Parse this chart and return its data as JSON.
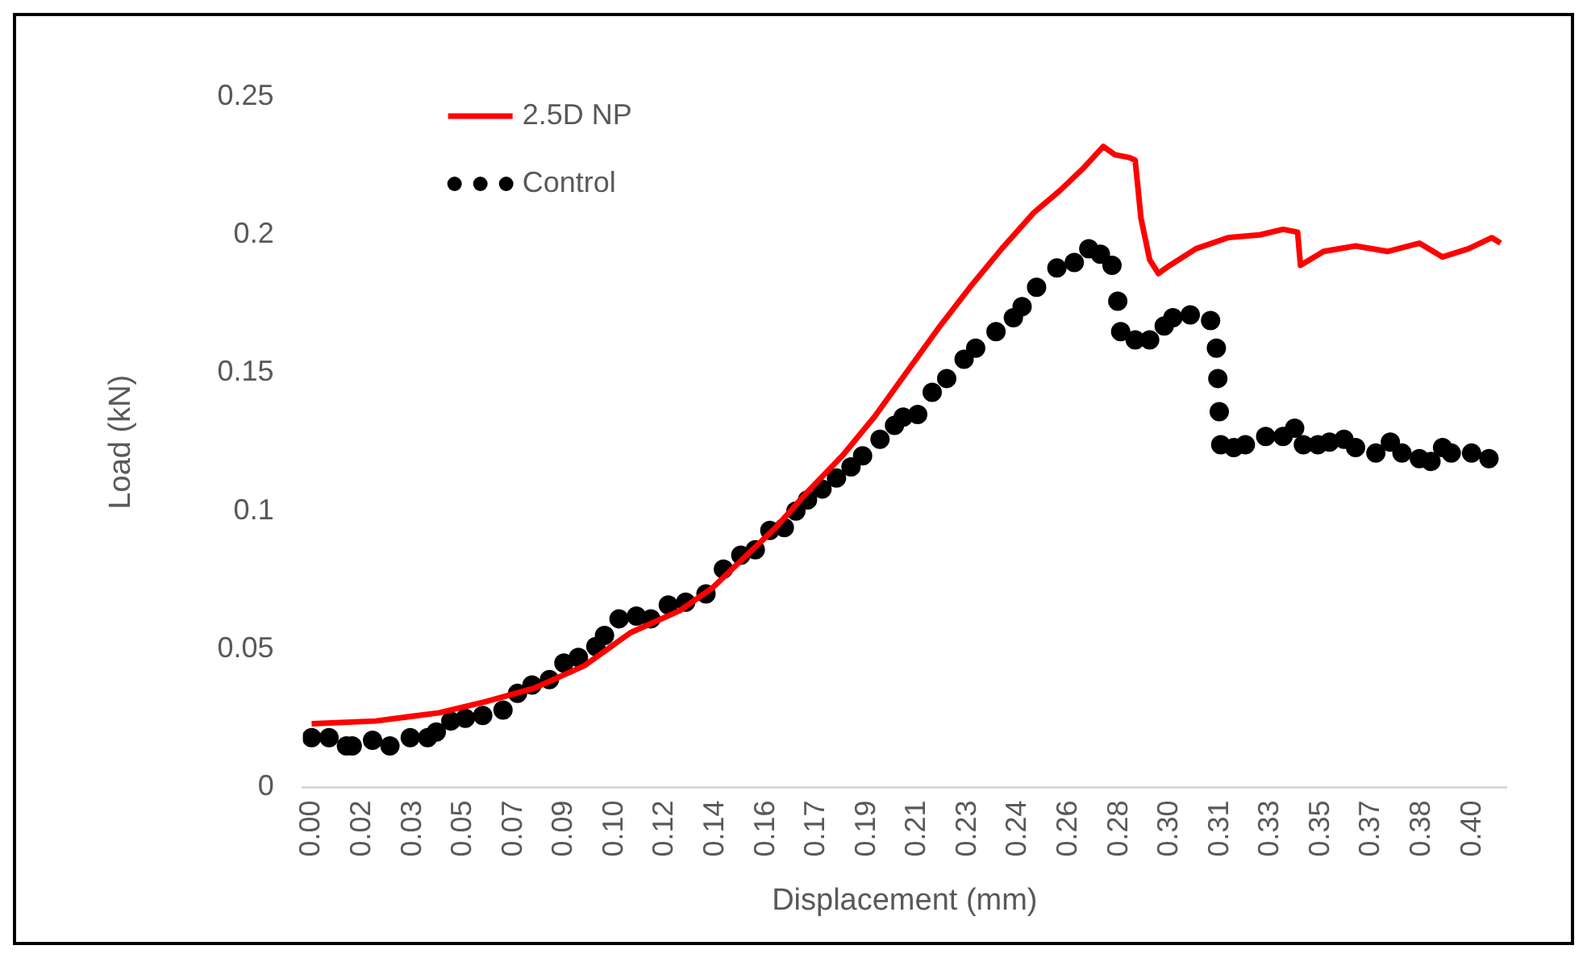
{
  "chart_data": {
    "type": "line",
    "xlabel": "Displacement (mm)",
    "ylabel": "Load (kN)",
    "xlim": [
      -0.003,
      0.412
    ],
    "ylim": [
      0,
      0.25
    ],
    "yticks": [
      0,
      0.05,
      0.1,
      0.15,
      0.2,
      0.25
    ],
    "xticks": [
      {
        "value": 0,
        "label": "0.00"
      },
      {
        "value": 0.0174,
        "label": "0.02"
      },
      {
        "value": 0.0348,
        "label": "0.03"
      },
      {
        "value": 0.0522,
        "label": "0.05"
      },
      {
        "value": 0.0696,
        "label": "0.07"
      },
      {
        "value": 0.087,
        "label": "0.09"
      },
      {
        "value": 0.1044,
        "label": "0.10"
      },
      {
        "value": 0.1218,
        "label": "0.12"
      },
      {
        "value": 0.1392,
        "label": "0.14"
      },
      {
        "value": 0.1566,
        "label": "0.16"
      },
      {
        "value": 0.174,
        "label": "0.17"
      },
      {
        "value": 0.1914,
        "label": "0.19"
      },
      {
        "value": 0.2088,
        "label": "0.21"
      },
      {
        "value": 0.2262,
        "label": "0.23"
      },
      {
        "value": 0.2436,
        "label": "0.24"
      },
      {
        "value": 0.261,
        "label": "0.26"
      },
      {
        "value": 0.2784,
        "label": "0.28"
      },
      {
        "value": 0.2958,
        "label": "0.30"
      },
      {
        "value": 0.3132,
        "label": "0.31"
      },
      {
        "value": 0.3306,
        "label": "0.33"
      },
      {
        "value": 0.348,
        "label": "0.35"
      },
      {
        "value": 0.3654,
        "label": "0.37"
      },
      {
        "value": 0.3828,
        "label": "0.38"
      },
      {
        "value": 0.4002,
        "label": "0.40"
      }
    ],
    "grid": false,
    "legend": "top left",
    "series": [
      {
        "name": "2.5D NP",
        "color": "#ff0000",
        "line_style": "solid",
        "marker": "none",
        "x": [
          0,
          0.022,
          0.044,
          0.06,
          0.077,
          0.094,
          0.11,
          0.127,
          0.138,
          0.149,
          0.16,
          0.171,
          0.183,
          0.194,
          0.205,
          0.216,
          0.227,
          0.238,
          0.249,
          0.258,
          0.266,
          0.273,
          0.277,
          0.282,
          0.284,
          0.286,
          0.289,
          0.292,
          0.296,
          0.305,
          0.316,
          0.327,
          0.335,
          0.34,
          0.341,
          0.349,
          0.36,
          0.371,
          0.382,
          0.39,
          0.399,
          0.407,
          0.41
        ],
        "values": [
          0.023,
          0.024,
          0.027,
          0.031,
          0.036,
          0.044,
          0.056,
          0.064,
          0.072,
          0.083,
          0.094,
          0.107,
          0.12,
          0.134,
          0.15,
          0.166,
          0.181,
          0.195,
          0.208,
          0.216,
          0.224,
          0.232,
          0.229,
          0.228,
          0.227,
          0.206,
          0.191,
          0.186,
          0.189,
          0.195,
          0.199,
          0.2,
          0.202,
          0.201,
          0.189,
          0.194,
          0.196,
          0.194,
          0.197,
          0.192,
          0.195,
          0.199,
          0.197
        ]
      },
      {
        "name": "Control",
        "type": "scatter",
        "color": "#000000",
        "marker": "circle",
        "x": [
          0,
          0.006,
          0.012,
          0.014,
          0.021,
          0.027,
          0.034,
          0.04,
          0.043,
          0.048,
          0.053,
          0.059,
          0.066,
          0.071,
          0.076,
          0.082,
          0.087,
          0.092,
          0.098,
          0.101,
          0.106,
          0.112,
          0.117,
          0.123,
          0.129,
          0.136,
          0.142,
          0.148,
          0.153,
          0.158,
          0.163,
          0.167,
          0.171,
          0.176,
          0.181,
          0.186,
          0.19,
          0.196,
          0.201,
          0.204,
          0.209,
          0.214,
          0.219,
          0.225,
          0.229,
          0.236,
          0.242,
          0.245,
          0.25,
          0.257,
          0.263,
          0.268,
          0.272,
          0.276,
          0.278,
          0.279,
          0.284,
          0.289,
          0.294,
          0.297,
          0.303,
          0.31,
          0.312,
          0.3125,
          0.313,
          0.3135,
          0.318,
          0.322,
          0.329,
          0.335,
          0.339,
          0.342,
          0.347,
          0.351,
          0.356,
          0.36,
          0.367,
          0.372,
          0.376,
          0.382,
          0.386,
          0.39,
          0.393,
          0.4,
          0.406
        ],
        "values": [
          0.018,
          0.018,
          0.015,
          0.015,
          0.017,
          0.015,
          0.018,
          0.018,
          0.02,
          0.024,
          0.025,
          0.026,
          0.028,
          0.034,
          0.037,
          0.039,
          0.045,
          0.047,
          0.051,
          0.055,
          0.061,
          0.062,
          0.061,
          0.066,
          0.067,
          0.07,
          0.079,
          0.084,
          0.086,
          0.093,
          0.094,
          0.1,
          0.104,
          0.108,
          0.112,
          0.116,
          0.12,
          0.126,
          0.131,
          0.134,
          0.135,
          0.143,
          0.148,
          0.155,
          0.159,
          0.165,
          0.17,
          0.174,
          0.181,
          0.188,
          0.19,
          0.195,
          0.193,
          0.189,
          0.176,
          0.165,
          0.162,
          0.162,
          0.167,
          0.17,
          0.171,
          0.169,
          0.159,
          0.148,
          0.136,
          0.124,
          0.123,
          0.124,
          0.127,
          0.127,
          0.13,
          0.124,
          0.124,
          0.125,
          0.126,
          0.123,
          0.121,
          0.125,
          0.121,
          0.119,
          0.118,
          0.123,
          0.121,
          0.121,
          0.119
        ]
      }
    ]
  }
}
